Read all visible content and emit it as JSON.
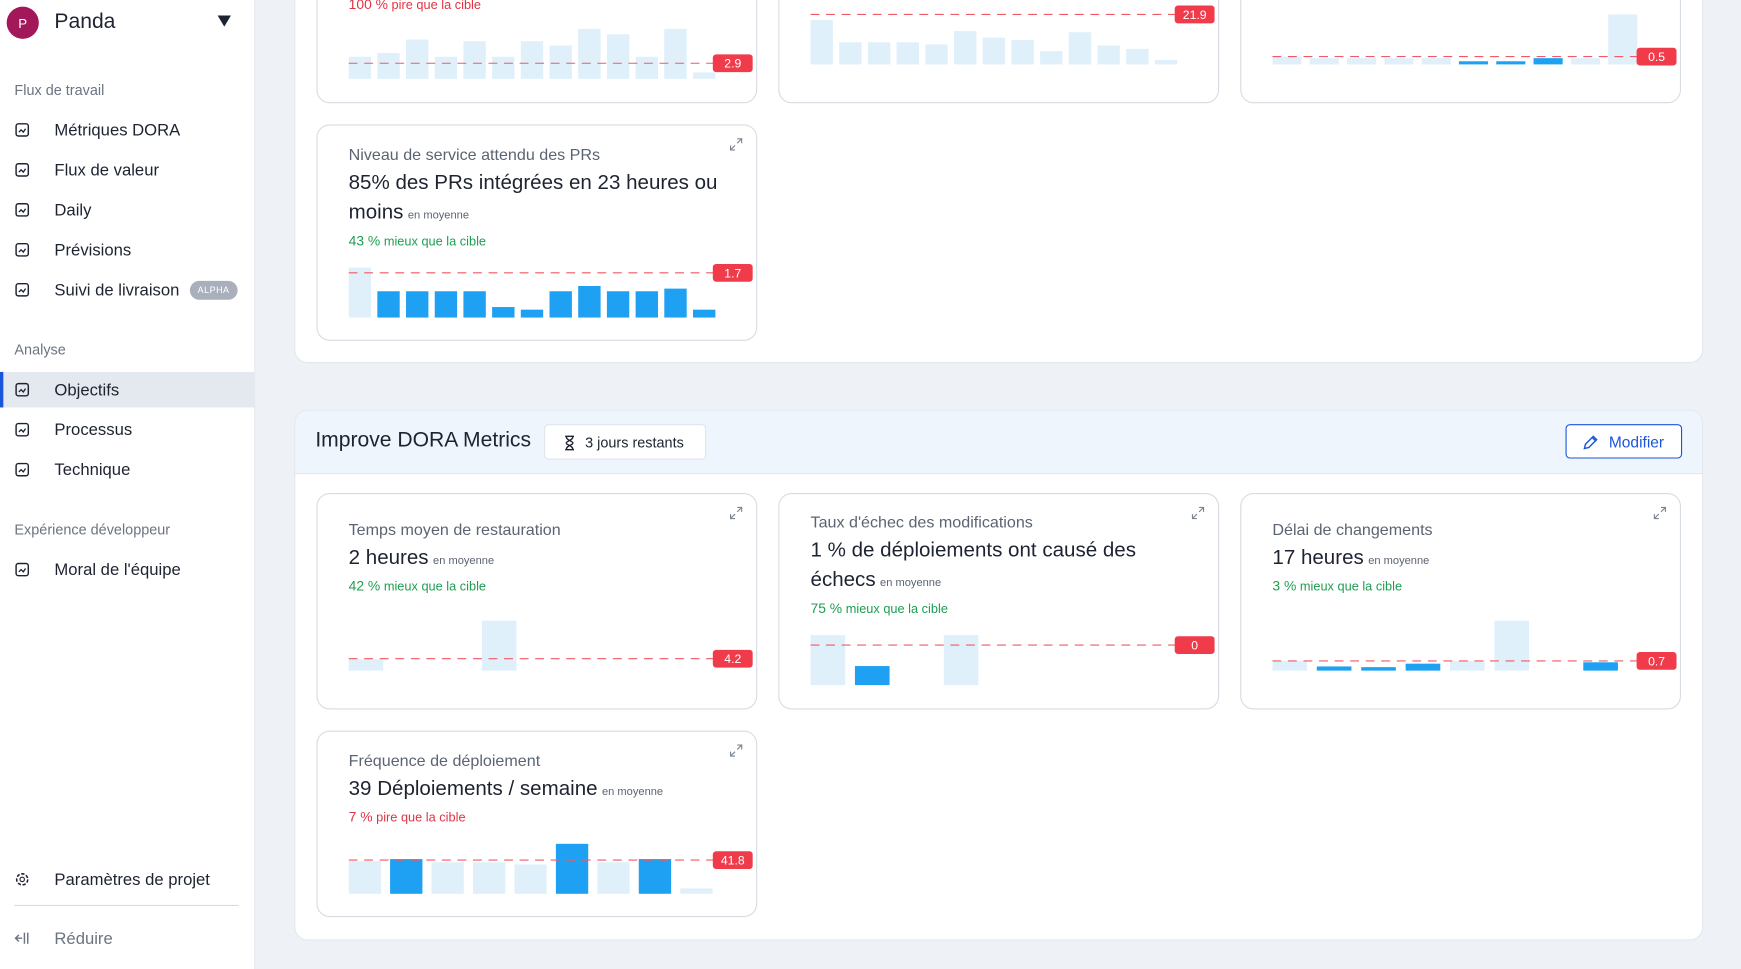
{
  "sidebar": {
    "avatar": "P",
    "workspace": "Panda",
    "sections": [
      {
        "title": "Flux de travail",
        "items": [
          {
            "label": "Métriques DORA"
          },
          {
            "label": "Flux de valeur"
          },
          {
            "label": "Daily"
          },
          {
            "label": "Prévisions"
          },
          {
            "label": "Suivi de livraison",
            "badge": "ALPHA"
          }
        ]
      },
      {
        "title": "Analyse",
        "items": [
          {
            "label": "Objectifs",
            "active": true
          },
          {
            "label": "Processus"
          },
          {
            "label": "Technique"
          }
        ]
      },
      {
        "title": "Expérience développeur",
        "items": [
          {
            "label": "Moral de l'équipe"
          }
        ]
      }
    ],
    "settings": "Paramètres de projet",
    "collapse": "Réduire"
  },
  "top_cards": [
    {
      "delta": "100 %",
      "delta_text": "pire que la cible",
      "delta_color": "#e03444",
      "chart": {
        "type": "bar",
        "target": 2.9,
        "values": [
          4.1,
          4.8,
          7.3,
          4.1,
          7.0,
          4.1,
          7.0,
          6.2,
          9.3,
          8.3,
          4.1,
          9.3,
          1.2
        ],
        "colors": [
          "#dff0fb",
          "#dff0fb",
          "#dff0fb",
          "#dff0fb",
          "#dff0fb",
          "#dff0fb",
          "#dff0fb",
          "#dff0fb",
          "#dff0fb",
          "#dff0fb",
          "#dff0fb",
          "#dff0fb",
          "#dff0fb"
        ]
      }
    },
    {
      "chart": {
        "type": "bar",
        "target": 21.9,
        "values": [
          19.5,
          9.7,
          9.7,
          9.7,
          8.8,
          14.6,
          11.7,
          10.7,
          5.8,
          14.1,
          8.3,
          6.8,
          1.9
        ],
        "colors": [
          "#dff0fb",
          "#dff0fb",
          "#dff0fb",
          "#dff0fb",
          "#dff0fb",
          "#dff0fb",
          "#dff0fb",
          "#dff0fb",
          "#dff0fb",
          "#dff0fb",
          "#dff0fb",
          "#dff0fb",
          "#dff0fb"
        ]
      }
    },
    {
      "chart": {
        "type": "bar",
        "target": 0.5,
        "values": [
          0.5,
          0.4,
          0.4,
          0.4,
          0.4,
          0.2,
          0.2,
          0.4,
          0.4,
          3.2
        ],
        "colors": [
          "#dff0fb",
          "#dff0fb",
          "#dff0fb",
          "#dff0fb",
          "#dff0fb",
          "#1ea1f2",
          "#1ea1f2",
          "#1ea1f2",
          "#dff0fb",
          "#dff0fb"
        ]
      }
    },
    {
      "label": "Niveau de service attendu des PRs",
      "headline": "85% des PRs intégrées en 23 heures ou moins",
      "note": "en moyenne",
      "delta": "43 %",
      "delta_text": "mieux que la cible",
      "delta_color": "#1e9e52",
      "chart": {
        "type": "bar",
        "target": 1.7,
        "values": [
          1.9,
          1.0,
          1.0,
          1.0,
          1.0,
          0.4,
          0.3,
          1.0,
          1.2,
          1.0,
          1.0,
          1.1,
          0.3
        ],
        "colors": [
          "#dff0fb",
          "#1ea1f2",
          "#1ea1f2",
          "#1ea1f2",
          "#1ea1f2",
          "#1ea1f2",
          "#1ea1f2",
          "#1ea1f2",
          "#1ea1f2",
          "#1ea1f2",
          "#1ea1f2",
          "#1ea1f2",
          "#1ea1f2"
        ]
      }
    }
  ],
  "goal": {
    "title": "Improve DORA Metrics",
    "remaining": "3 jours restants",
    "edit": "Modifier",
    "cards": [
      {
        "label": "Temps moyen de restauration",
        "headline": "2 heures",
        "note": "en moyenne",
        "delta": "42 %",
        "delta_text": "mieux que la cible",
        "delta_color": "#1e9e52",
        "chart": {
          "type": "bar",
          "target": 4.2,
          "values": [
            4.0,
            0,
            0,
            17.6,
            0,
            0,
            0,
            0
          ],
          "colors": [
            "#dff0fb",
            "#dff0fb",
            "#dff0fb",
            "#dff0fb",
            "#dff0fb",
            "#dff0fb",
            "#dff0fb",
            "#dff0fb"
          ]
        }
      },
      {
        "label": "Taux d'échec des modifications",
        "headline": "1 % de déploiements ont causé des échecs",
        "note": "en moyenne",
        "delta": "75 %",
        "delta_text": "mieux que la cible",
        "delta_color": "#1e9e52",
        "chart": {
          "type": "bar",
          "target": {
            "value": 0.4,
            "label": "0"
          },
          "values": [
            0.5,
            0.19,
            0,
            0.5,
            0,
            0,
            0
          ],
          "colors": [
            "#dff0fb",
            "#1ea1f2",
            "#dff0fb",
            "#dff0fb",
            "#dff0fb",
            "#dff0fb",
            "#dff0fb"
          ]
        }
      },
      {
        "label": "Délai de changements",
        "headline": "17 heures",
        "note": "en moyenne",
        "delta": "3 %",
        "delta_text": "mieux que la cible",
        "delta_color": "#1e9e52",
        "chart": {
          "type": "bar",
          "target": 0.7,
          "values": [
            0.7,
            0.3,
            0.25,
            0.5,
            0.7,
            3.6,
            0,
            0.6
          ],
          "colors": [
            "#dff0fb",
            "#1ea1f2",
            "#1ea1f2",
            "#1ea1f2",
            "#dff0fb",
            "#dff0fb",
            "#dff0fb",
            "#1ea1f2"
          ]
        }
      },
      {
        "label": "Fréquence de déploiement",
        "headline": "39 Déploiements / semaine",
        "note": "en moyenne",
        "delta": "7 %",
        "delta_text": "pire que la cible",
        "delta_color": "#e03444",
        "chart": {
          "type": "bar",
          "target": 41.8,
          "values": [
            40.5,
            43.1,
            39.1,
            39.1,
            36.4,
            62,
            39.1,
            43.1,
            6.7
          ],
          "colors": [
            "#dff0fb",
            "#1ea1f2",
            "#dff0fb",
            "#dff0fb",
            "#dff0fb",
            "#1ea1f2",
            "#dff0fb",
            "#1ea1f2",
            "#dff0fb"
          ]
        }
      }
    ]
  }
}
